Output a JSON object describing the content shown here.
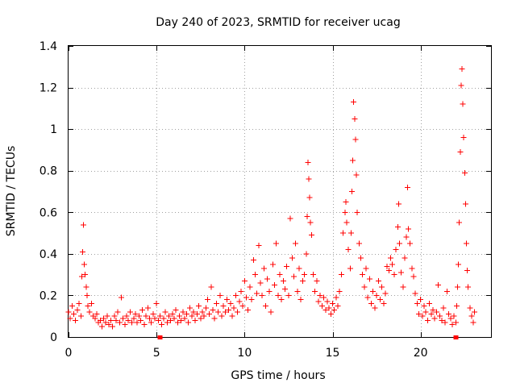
{
  "chart_data": {
    "type": "scatter",
    "title": "Day 240 of 2023, SRMTID for receiver ucag",
    "xlabel": "GPS time / hours",
    "ylabel": "SRMTID / TECUs",
    "xlim": [
      0,
      24
    ],
    "ylim": [
      0,
      1.4
    ],
    "grid": true,
    "x_ticks": [
      {
        "value": 0,
        "label": "0"
      },
      {
        "value": 5,
        "label": "5"
      },
      {
        "value": 10,
        "label": "10"
      },
      {
        "value": 15,
        "label": "15"
      },
      {
        "value": 20,
        "label": "20"
      }
    ],
    "y_ticks": [
      {
        "value": 0,
        "label": "0"
      },
      {
        "value": 0.2,
        "label": "0.2"
      },
      {
        "value": 0.4,
        "label": "0.4"
      },
      {
        "value": 0.6,
        "label": "0.6"
      },
      {
        "value": 0.8,
        "label": "0.8"
      },
      {
        "value": 1.0,
        "label": "1"
      },
      {
        "value": 1.2,
        "label": "1.2"
      },
      {
        "value": 1.4,
        "label": "1.4"
      }
    ],
    "series": [
      {
        "name": "SRMTID",
        "marker": "plus",
        "color": "#ff0000",
        "points": [
          [
            0.0,
            0.12
          ],
          [
            0.1,
            0.09
          ],
          [
            0.2,
            0.15
          ],
          [
            0.3,
            0.11
          ],
          [
            0.4,
            0.08
          ],
          [
            0.5,
            0.13
          ],
          [
            0.6,
            0.16
          ],
          [
            0.7,
            0.1
          ],
          [
            0.75,
            0.29
          ],
          [
            0.8,
            0.41
          ],
          [
            0.85,
            0.54
          ],
          [
            0.9,
            0.35
          ],
          [
            0.95,
            0.3
          ],
          [
            1.0,
            0.24
          ],
          [
            1.05,
            0.2
          ],
          [
            1.1,
            0.15
          ],
          [
            1.2,
            0.12
          ],
          [
            1.3,
            0.16
          ],
          [
            1.4,
            0.1
          ],
          [
            1.5,
            0.09
          ],
          [
            1.6,
            0.11
          ],
          [
            1.7,
            0.07
          ],
          [
            1.8,
            0.08
          ],
          [
            1.9,
            0.05
          ],
          [
            2.0,
            0.09
          ],
          [
            2.1,
            0.07
          ],
          [
            2.2,
            0.1
          ],
          [
            2.3,
            0.06
          ],
          [
            2.4,
            0.08
          ],
          [
            2.5,
            0.05
          ],
          [
            2.6,
            0.1
          ],
          [
            2.7,
            0.08
          ],
          [
            2.8,
            0.12
          ],
          [
            2.9,
            0.07
          ],
          [
            3.0,
            0.19
          ],
          [
            3.1,
            0.09
          ],
          [
            3.2,
            0.06
          ],
          [
            3.3,
            0.1
          ],
          [
            3.4,
            0.08
          ],
          [
            3.5,
            0.12
          ],
          [
            3.6,
            0.07
          ],
          [
            3.7,
            0.09
          ],
          [
            3.8,
            0.11
          ],
          [
            3.9,
            0.07
          ],
          [
            4.0,
            0.1
          ],
          [
            4.1,
            0.08
          ],
          [
            4.2,
            0.13
          ],
          [
            4.3,
            0.06
          ],
          [
            4.4,
            0.1
          ],
          [
            4.5,
            0.14
          ],
          [
            4.6,
            0.09
          ],
          [
            4.7,
            0.07
          ],
          [
            4.8,
            0.11
          ],
          [
            4.9,
            0.09
          ],
          [
            5.0,
            0.16
          ],
          [
            5.1,
            0.08
          ],
          [
            5.2,
            0.1
          ],
          [
            5.3,
            0.06
          ],
          [
            5.4,
            0.09
          ],
          [
            5.5,
            0.12
          ],
          [
            5.6,
            0.07
          ],
          [
            5.7,
            0.1
          ],
          [
            5.8,
            0.08
          ],
          [
            5.9,
            0.11
          ],
          [
            6.0,
            0.09
          ],
          [
            6.1,
            0.13
          ],
          [
            6.2,
            0.07
          ],
          [
            6.3,
            0.1
          ],
          [
            6.4,
            0.08
          ],
          [
            6.5,
            0.12
          ],
          [
            6.6,
            0.09
          ],
          [
            6.7,
            0.11
          ],
          [
            6.8,
            0.07
          ],
          [
            6.9,
            0.14
          ],
          [
            7.0,
            0.1
          ],
          [
            7.1,
            0.12
          ],
          [
            7.2,
            0.08
          ],
          [
            7.3,
            0.11
          ],
          [
            7.4,
            0.15
          ],
          [
            7.5,
            0.09
          ],
          [
            7.6,
            0.12
          ],
          [
            7.7,
            0.1
          ],
          [
            7.8,
            0.14
          ],
          [
            7.9,
            0.18
          ],
          [
            8.0,
            0.11
          ],
          [
            8.1,
            0.24
          ],
          [
            8.2,
            0.13
          ],
          [
            8.3,
            0.09
          ],
          [
            8.4,
            0.16
          ],
          [
            8.5,
            0.12
          ],
          [
            8.6,
            0.2
          ],
          [
            8.7,
            0.1
          ],
          [
            8.8,
            0.15
          ],
          [
            8.9,
            0.12
          ],
          [
            9.0,
            0.18
          ],
          [
            9.1,
            0.13
          ],
          [
            9.2,
            0.16
          ],
          [
            9.3,
            0.1
          ],
          [
            9.4,
            0.14
          ],
          [
            9.5,
            0.2
          ],
          [
            9.6,
            0.12
          ],
          [
            9.7,
            0.17
          ],
          [
            9.8,
            0.22
          ],
          [
            9.9,
            0.15
          ],
          [
            10.0,
            0.27
          ],
          [
            10.1,
            0.19
          ],
          [
            10.2,
            0.13
          ],
          [
            10.3,
            0.24
          ],
          [
            10.4,
            0.18
          ],
          [
            10.5,
            0.37
          ],
          [
            10.6,
            0.3
          ],
          [
            10.7,
            0.21
          ],
          [
            10.8,
            0.44
          ],
          [
            10.9,
            0.26
          ],
          [
            11.0,
            0.2
          ],
          [
            11.1,
            0.33
          ],
          [
            11.2,
            0.15
          ],
          [
            11.3,
            0.28
          ],
          [
            11.4,
            0.22
          ],
          [
            11.5,
            0.12
          ],
          [
            11.6,
            0.35
          ],
          [
            11.7,
            0.25
          ],
          [
            11.8,
            0.45
          ],
          [
            11.9,
            0.2
          ],
          [
            12.0,
            0.3
          ],
          [
            12.1,
            0.18
          ],
          [
            12.2,
            0.27
          ],
          [
            12.3,
            0.23
          ],
          [
            12.4,
            0.34
          ],
          [
            12.5,
            0.2
          ],
          [
            12.6,
            0.57
          ],
          [
            12.7,
            0.38
          ],
          [
            12.8,
            0.29
          ],
          [
            12.9,
            0.45
          ],
          [
            13.0,
            0.22
          ],
          [
            13.1,
            0.33
          ],
          [
            13.2,
            0.18
          ],
          [
            13.3,
            0.27
          ],
          [
            13.4,
            0.3
          ],
          [
            13.5,
            0.4
          ],
          [
            13.55,
            0.58
          ],
          [
            13.6,
            0.84
          ],
          [
            13.65,
            0.76
          ],
          [
            13.7,
            0.67
          ],
          [
            13.75,
            0.55
          ],
          [
            13.8,
            0.49
          ],
          [
            13.9,
            0.3
          ],
          [
            14.0,
            0.22
          ],
          [
            14.1,
            0.27
          ],
          [
            14.2,
            0.17
          ],
          [
            14.3,
            0.2
          ],
          [
            14.4,
            0.15
          ],
          [
            14.5,
            0.19
          ],
          [
            14.6,
            0.13
          ],
          [
            14.7,
            0.17
          ],
          [
            14.8,
            0.14
          ],
          [
            14.9,
            0.11
          ],
          [
            15.0,
            0.16
          ],
          [
            15.1,
            0.13
          ],
          [
            15.2,
            0.19
          ],
          [
            15.3,
            0.15
          ],
          [
            15.4,
            0.22
          ],
          [
            15.5,
            0.3
          ],
          [
            15.6,
            0.5
          ],
          [
            15.7,
            0.6
          ],
          [
            15.75,
            0.65
          ],
          [
            15.8,
            0.55
          ],
          [
            15.9,
            0.42
          ],
          [
            16.0,
            0.33
          ],
          [
            16.05,
            0.5
          ],
          [
            16.1,
            0.7
          ],
          [
            16.15,
            0.85
          ],
          [
            16.2,
            1.13
          ],
          [
            16.25,
            1.05
          ],
          [
            16.3,
            0.95
          ],
          [
            16.35,
            0.78
          ],
          [
            16.4,
            0.6
          ],
          [
            16.5,
            0.45
          ],
          [
            16.6,
            0.38
          ],
          [
            16.7,
            0.3
          ],
          [
            16.8,
            0.24
          ],
          [
            16.9,
            0.33
          ],
          [
            17.0,
            0.19
          ],
          [
            17.1,
            0.28
          ],
          [
            17.2,
            0.16
          ],
          [
            17.3,
            0.22
          ],
          [
            17.4,
            0.14
          ],
          [
            17.5,
            0.2
          ],
          [
            17.6,
            0.27
          ],
          [
            17.7,
            0.18
          ],
          [
            17.8,
            0.24
          ],
          [
            17.9,
            0.16
          ],
          [
            18.0,
            0.21
          ],
          [
            18.1,
            0.34
          ],
          [
            18.2,
            0.32
          ],
          [
            18.3,
            0.38
          ],
          [
            18.4,
            0.35
          ],
          [
            18.5,
            0.3
          ],
          [
            18.6,
            0.42
          ],
          [
            18.7,
            0.53
          ],
          [
            18.75,
            0.64
          ],
          [
            18.8,
            0.45
          ],
          [
            18.9,
            0.31
          ],
          [
            19.0,
            0.24
          ],
          [
            19.1,
            0.38
          ],
          [
            19.2,
            0.48
          ],
          [
            19.25,
            0.72
          ],
          [
            19.3,
            0.52
          ],
          [
            19.4,
            0.45
          ],
          [
            19.5,
            0.33
          ],
          [
            19.6,
            0.29
          ],
          [
            19.7,
            0.21
          ],
          [
            19.8,
            0.16
          ],
          [
            19.9,
            0.11
          ],
          [
            20.0,
            0.18
          ],
          [
            20.1,
            0.1
          ],
          [
            20.2,
            0.15
          ],
          [
            20.3,
            0.12
          ],
          [
            20.4,
            0.08
          ],
          [
            20.5,
            0.16
          ],
          [
            20.6,
            0.11
          ],
          [
            20.7,
            0.13
          ],
          [
            20.8,
            0.09
          ],
          [
            20.9,
            0.12
          ],
          [
            21.0,
            0.25
          ],
          [
            21.1,
            0.1
          ],
          [
            21.2,
            0.08
          ],
          [
            21.3,
            0.14
          ],
          [
            21.4,
            0.07
          ],
          [
            21.5,
            0.22
          ],
          [
            21.6,
            0.11
          ],
          [
            21.7,
            0.09
          ],
          [
            21.8,
            0.06
          ],
          [
            21.9,
            0.1
          ],
          [
            22.0,
            0.07
          ],
          [
            22.05,
            0.15
          ],
          [
            22.1,
            0.24
          ],
          [
            22.15,
            0.35
          ],
          [
            22.2,
            0.55
          ],
          [
            22.25,
            0.89
          ],
          [
            22.3,
            1.21
          ],
          [
            22.35,
            1.29
          ],
          [
            22.4,
            1.12
          ],
          [
            22.45,
            0.96
          ],
          [
            22.5,
            0.79
          ],
          [
            22.55,
            0.64
          ],
          [
            22.6,
            0.45
          ],
          [
            22.65,
            0.32
          ],
          [
            22.7,
            0.24
          ],
          [
            22.8,
            0.14
          ],
          [
            22.9,
            0.1
          ],
          [
            23.0,
            0.07
          ],
          [
            23.05,
            0.12
          ]
        ]
      }
    ],
    "axis_markers": [
      {
        "x": 5.2,
        "y": 0
      },
      {
        "x": 22.0,
        "y": 0
      }
    ]
  }
}
